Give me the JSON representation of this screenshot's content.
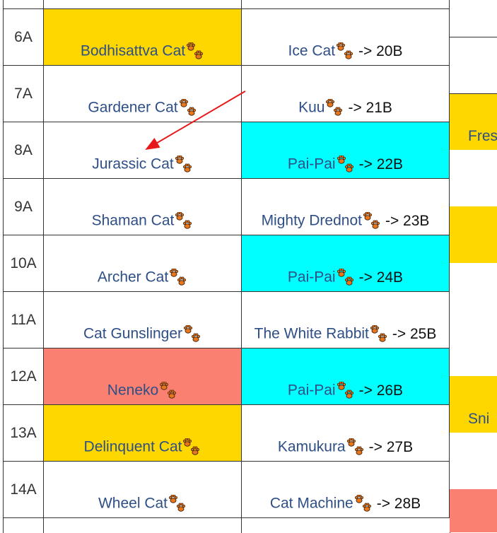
{
  "colors": {
    "gold": "#ffd700",
    "cyan": "#00ffff",
    "salmon": "#fa8072",
    "link": "#2e4f86",
    "annotation_arrow": "#e8191b"
  },
  "rows": [
    {
      "num": "6A",
      "a_name": "Bodhisattva Cat",
      "a_bg": "#ffd700",
      "b_name": "Ice Cat",
      "b_arrow": "-> 20B",
      "b_bg": "#ffffff"
    },
    {
      "num": "7A",
      "a_name": "Gardener Cat",
      "a_bg": "#ffffff",
      "b_name": "Kuu",
      "b_arrow": "-> 21B",
      "b_bg": "#ffffff"
    },
    {
      "num": "8A",
      "a_name": "Jurassic Cat",
      "a_bg": "#ffffff",
      "b_name": "Pai-Pai",
      "b_arrow": "-> 22B",
      "b_bg": "#00ffff"
    },
    {
      "num": "9A",
      "a_name": "Shaman Cat",
      "a_bg": "#ffffff",
      "b_name": "Mighty Drednot",
      "b_arrow": "-> 23B",
      "b_bg": "#ffffff"
    },
    {
      "num": "10A",
      "a_name": "Archer Cat",
      "a_bg": "#ffffff",
      "b_name": "Pai-Pai",
      "b_arrow": "-> 24B",
      "b_bg": "#00ffff"
    },
    {
      "num": "11A",
      "a_name": "Cat Gunslinger",
      "a_bg": "#ffffff",
      "b_name": "The White Rabbit",
      "b_arrow": "-> 25B",
      "b_bg": "#ffffff"
    },
    {
      "num": "12A",
      "a_name": "Neneko",
      "a_bg": "#fa8072",
      "b_name": "Pai-Pai",
      "b_arrow": "-> 26B",
      "b_bg": "#00ffff"
    },
    {
      "num": "13A",
      "a_name": "Delinquent Cat",
      "a_bg": "#ffd700",
      "b_name": "Kamukura",
      "b_arrow": "-> 27B",
      "b_bg": "#ffffff"
    },
    {
      "num": "14A",
      "a_name": "Wheel Cat",
      "a_bg": "#ffffff",
      "b_name": "Cat Machine",
      "b_arrow": "-> 28B",
      "b_bg": "#ffffff"
    }
  ],
  "right_column": [
    {
      "text": "",
      "bg": "#ffffff"
    },
    {
      "text": "Fres",
      "bg": "#ffd700"
    },
    {
      "text": "",
      "bg": "#ffffff"
    },
    {
      "text": "",
      "bg": "#ffd700"
    },
    {
      "text": "",
      "bg": "#ffffff"
    },
    {
      "text": "",
      "bg": "#ffffff"
    },
    {
      "text": "Sni",
      "bg": "#ffd700"
    },
    {
      "text": "",
      "bg": "#ffffff"
    },
    {
      "text": "",
      "bg": "#fa8072"
    }
  ],
  "icons": {
    "paw": "paw-print-icon",
    "annotation": "red-arrow-annotation"
  }
}
